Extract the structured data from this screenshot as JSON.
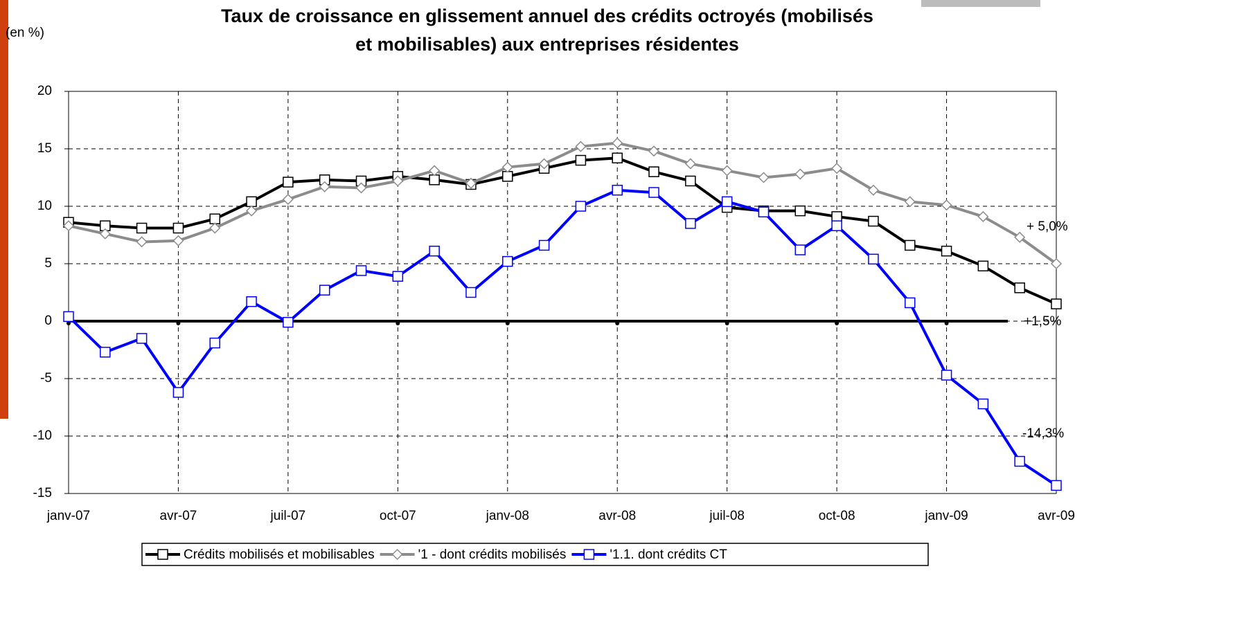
{
  "chart_data": {
    "type": "line",
    "title": [
      "Taux de croissance en glissement annuel des crédits octroyés (mobilisés",
      "et mobilisables) aux entreprises résidentes"
    ],
    "y_unit_label": "(en %)",
    "categories": [
      "janv-07",
      null,
      null,
      "avr-07",
      null,
      null,
      "juil-07",
      null,
      null,
      "oct-07",
      null,
      null,
      "janv-08",
      null,
      null,
      "avr-08",
      null,
      null,
      "juil-08",
      null,
      null,
      "oct-08",
      null,
      null,
      "janv-09",
      null,
      null,
      "avr-09"
    ],
    "series": [
      {
        "name": "Crédits mobilisés et mobilisables",
        "color": "#000000",
        "marker": "square",
        "values": [
          8.6,
          8.3,
          8.1,
          8.1,
          8.9,
          10.4,
          12.1,
          12.3,
          12.2,
          12.6,
          12.3,
          11.9,
          12.6,
          13.3,
          14.0,
          14.2,
          13.0,
          12.2,
          9.9,
          9.6,
          9.6,
          9.1,
          8.7,
          6.6,
          6.1,
          4.8,
          2.9,
          1.5
        ]
      },
      {
        "name": "'1 - dont crédits mobilisés",
        "color": "#8c8c8c",
        "marker": "diamond",
        "values": [
          8.3,
          7.6,
          6.9,
          7.0,
          8.1,
          9.6,
          10.6,
          11.7,
          11.6,
          12.2,
          13.1,
          12.0,
          13.4,
          13.7,
          15.2,
          15.5,
          14.8,
          13.7,
          13.1,
          12.5,
          12.8,
          13.3,
          11.4,
          10.4,
          10.1,
          9.1,
          7.3,
          5.0
        ]
      },
      {
        "name": "'1.1. dont crédits CT",
        "color": "#0000ff",
        "marker": "square",
        "values": [
          0.4,
          -2.7,
          -1.5,
          -6.2,
          -1.9,
          1.7,
          -0.1,
          2.7,
          4.4,
          3.9,
          6.1,
          2.5,
          5.2,
          6.6,
          10.0,
          11.4,
          11.2,
          8.5,
          10.4,
          9.5,
          6.2,
          8.3,
          5.4,
          1.6,
          -4.7,
          -7.2,
          -12.2,
          -14.3
        ]
      }
    ],
    "annotations": [
      "+ 5,0%",
      "+1,5%",
      "-14,3%"
    ],
    "ylim": [
      -15,
      20
    ],
    "yticks": [
      -15,
      -10,
      -5,
      0,
      5,
      10,
      15,
      20
    ],
    "grid": true,
    "legend": "bottom"
  }
}
